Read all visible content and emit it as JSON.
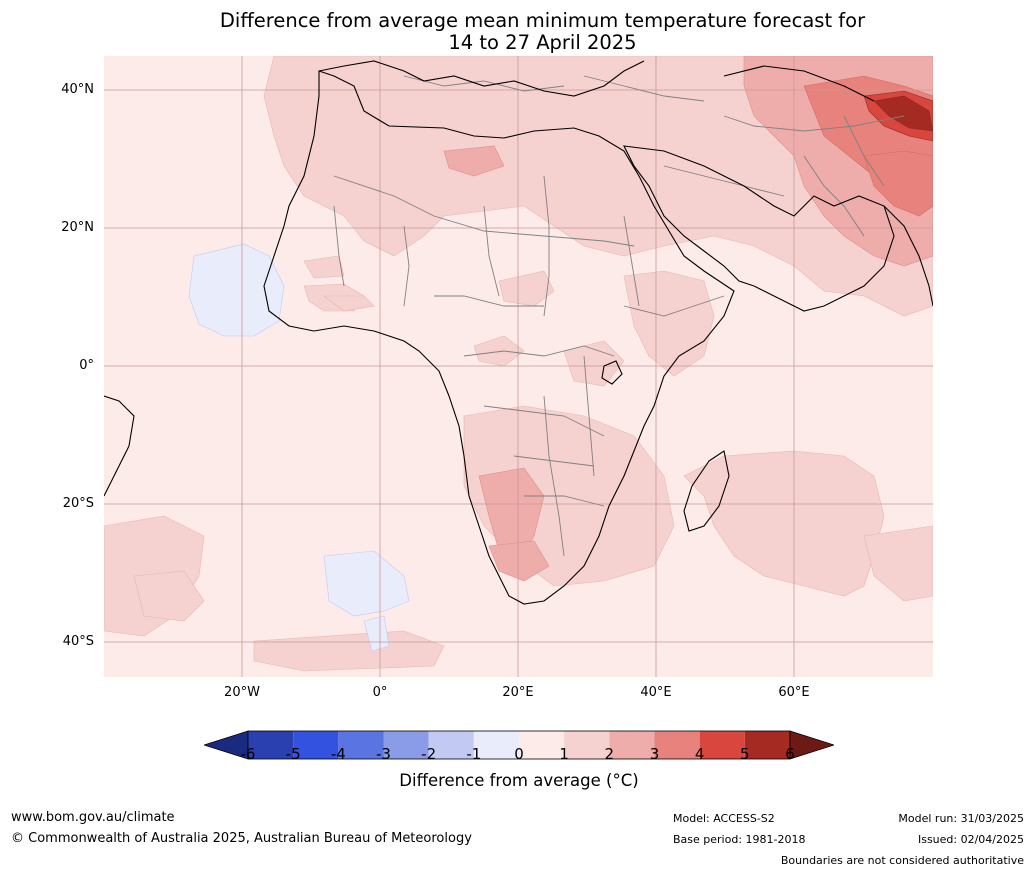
{
  "title_line1": "Difference from average mean minimum temperature forecast for",
  "title_line2": "14 to 27 April 2025",
  "lat_labels": [
    "40°N",
    "20°N",
    "0°",
    "20°S",
    "40°S"
  ],
  "lon_labels": [
    "20°W",
    "0°",
    "20°E",
    "40°E",
    "60°E"
  ],
  "colorbar": {
    "ticks": [
      "-6",
      "-5",
      "-4",
      "-3",
      "-2",
      "-1",
      "0",
      "1",
      "2",
      "3",
      "4",
      "5",
      "6"
    ],
    "colors": [
      "#1a2a80",
      "#2a3fb0",
      "#3452e0",
      "#5a74e2",
      "#8a9ce8",
      "#c2c9f3",
      "#e8ecfb",
      "#fcebe9",
      "#f5d2cf",
      "#eeadaa",
      "#e8827d",
      "#d9463d",
      "#a42a22",
      "#6e1a14"
    ],
    "label": "Difference from average (°C)"
  },
  "footer": {
    "website": "www.bom.gov.au/climate",
    "copyright": "© Commonwealth of Australia 2025, Australian Bureau of Meteorology",
    "model": "Model: ACCESS-S2",
    "base_period": "Base period: 1981-2018",
    "model_run": "Model run: 31/03/2025",
    "issued": "Issued: 02/04/2025",
    "disclaimer": "Boundaries are not considered authoritative"
  }
}
